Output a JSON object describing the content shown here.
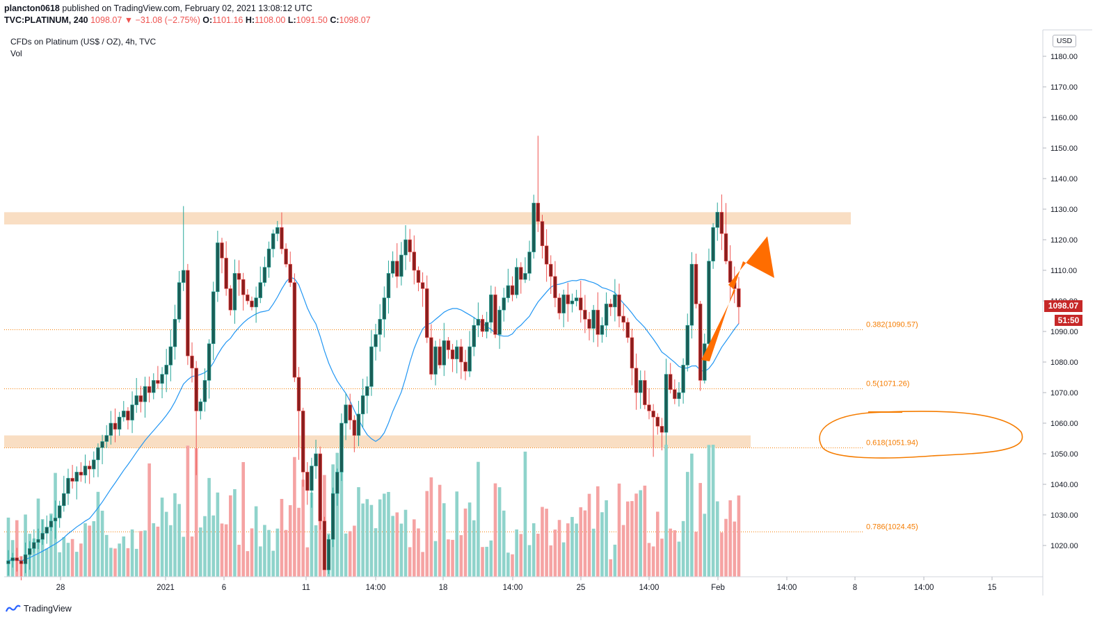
{
  "header": {
    "author": "plancton0618",
    "published": " published on TradingView.com, February 02, 2021 13:08:12 UTC",
    "symbol": "TVC:PLATINUM, 240",
    "last": "1098.07",
    "change": "▼ −31.08 (−2.75%)",
    "o_label": "O:",
    "o_val": "1101.16",
    "h_label": "H:",
    "h_val": "1108.00",
    "l_label": "L:",
    "l_val": "1091.50",
    "c_label": "C:",
    "c_val": "1098.07"
  },
  "legend": {
    "title": "CFDs on Platinum (US$ / OZ), 4h, TVC",
    "vol": "Vol"
  },
  "currency": "USD",
  "price_tag": "1098.07",
  "time_tag": "51:50",
  "brand": "TradingView",
  "colors": {
    "up": "#26a69a",
    "down": "#ef5350",
    "ma": "#2196f3",
    "fib": "#f57c00",
    "zone": "#f8d8b8",
    "arrow": "#ff6d00",
    "vol_up": "#8fd3cb",
    "vol_down": "#f5a3a3"
  },
  "chart_data": {
    "type": "candlestick",
    "title": "CFDs on Platinum (US$ / OZ), 4h, TVC",
    "ylim": [
      1010,
      1185
    ],
    "y_ticks": [
      "1020.00",
      "1030.00",
      "1040.00",
      "1050.00",
      "1060.00",
      "1070.00",
      "1080.00",
      "1090.00",
      "1100.00",
      "1110.00",
      "1120.00",
      "1130.00",
      "1140.00",
      "1150.00",
      "1160.00",
      "1170.00",
      "1180.00"
    ],
    "x_ticks": [
      "28",
      "2021",
      "6",
      "11",
      "14:00",
      "18",
      "14:00",
      "25",
      "14:00",
      "Feb",
      "14:00",
      "8",
      "14:00",
      "15"
    ],
    "fib_levels": [
      {
        "label": "0.382(1090.57)",
        "value": 1090.57
      },
      {
        "label": "0.5(1071.26)",
        "value": 1071.26
      },
      {
        "label": "0.618(1051.94)",
        "value": 1051.94
      },
      {
        "label": "0.786(1024.45)",
        "value": 1024.45
      }
    ],
    "zones": [
      {
        "low": 1125,
        "high": 1129
      },
      {
        "low": 1052,
        "high": 1056
      }
    ],
    "close": [
      1015,
      1016,
      1015,
      1014,
      1017,
      1019,
      1021,
      1022,
      1024,
      1026,
      1028,
      1029,
      1033,
      1037,
      1042,
      1041,
      1044,
      1043,
      1046,
      1045,
      1048,
      1052,
      1054,
      1056,
      1060,
      1058,
      1062,
      1064,
      1061,
      1066,
      1069,
      1067,
      1072,
      1070,
      1074,
      1073,
      1076,
      1079,
      1085,
      1094,
      1106,
      1110,
      1082,
      1078,
      1064,
      1067,
      1074,
      1086,
      1103,
      1119,
      1114,
      1104,
      1097,
      1109,
      1107,
      1102,
      1100,
      1098,
      1101,
      1106,
      1111,
      1117,
      1122,
      1124,
      1117,
      1112,
      1106,
      1075,
      1064,
      1044,
      1038,
      1046,
      1050,
      1028,
      1012,
      1022,
      1037,
      1044,
      1060,
      1066,
      1061,
      1056,
      1063,
      1069,
      1072,
      1085,
      1089,
      1094,
      1101,
      1109,
      1113,
      1108,
      1115,
      1120,
      1116,
      1110,
      1106,
      1104,
      1088,
      1076,
      1085,
      1079,
      1087,
      1084,
      1081,
      1085,
      1080,
      1077,
      1085,
      1092,
      1094,
      1090,
      1093,
      1102,
      1089,
      1097,
      1101,
      1105,
      1102,
      1111,
      1107,
      1109,
      1116,
      1132,
      1126,
      1118,
      1112,
      1108,
      1101,
      1096,
      1102,
      1099,
      1100,
      1101,
      1097,
      1094,
      1091,
      1097,
      1089,
      1092,
      1099,
      1098,
      1102,
      1095,
      1093,
      1088,
      1078,
      1070,
      1074,
      1066,
      1064,
      1062,
      1059,
      1057,
      1076,
      1071,
      1068,
      1070,
      1079,
      1092,
      1112,
      1099,
      1074,
      1086,
      1113,
      1124,
      1129,
      1122,
      1113,
      1106,
      1104,
      1098
    ]
  }
}
